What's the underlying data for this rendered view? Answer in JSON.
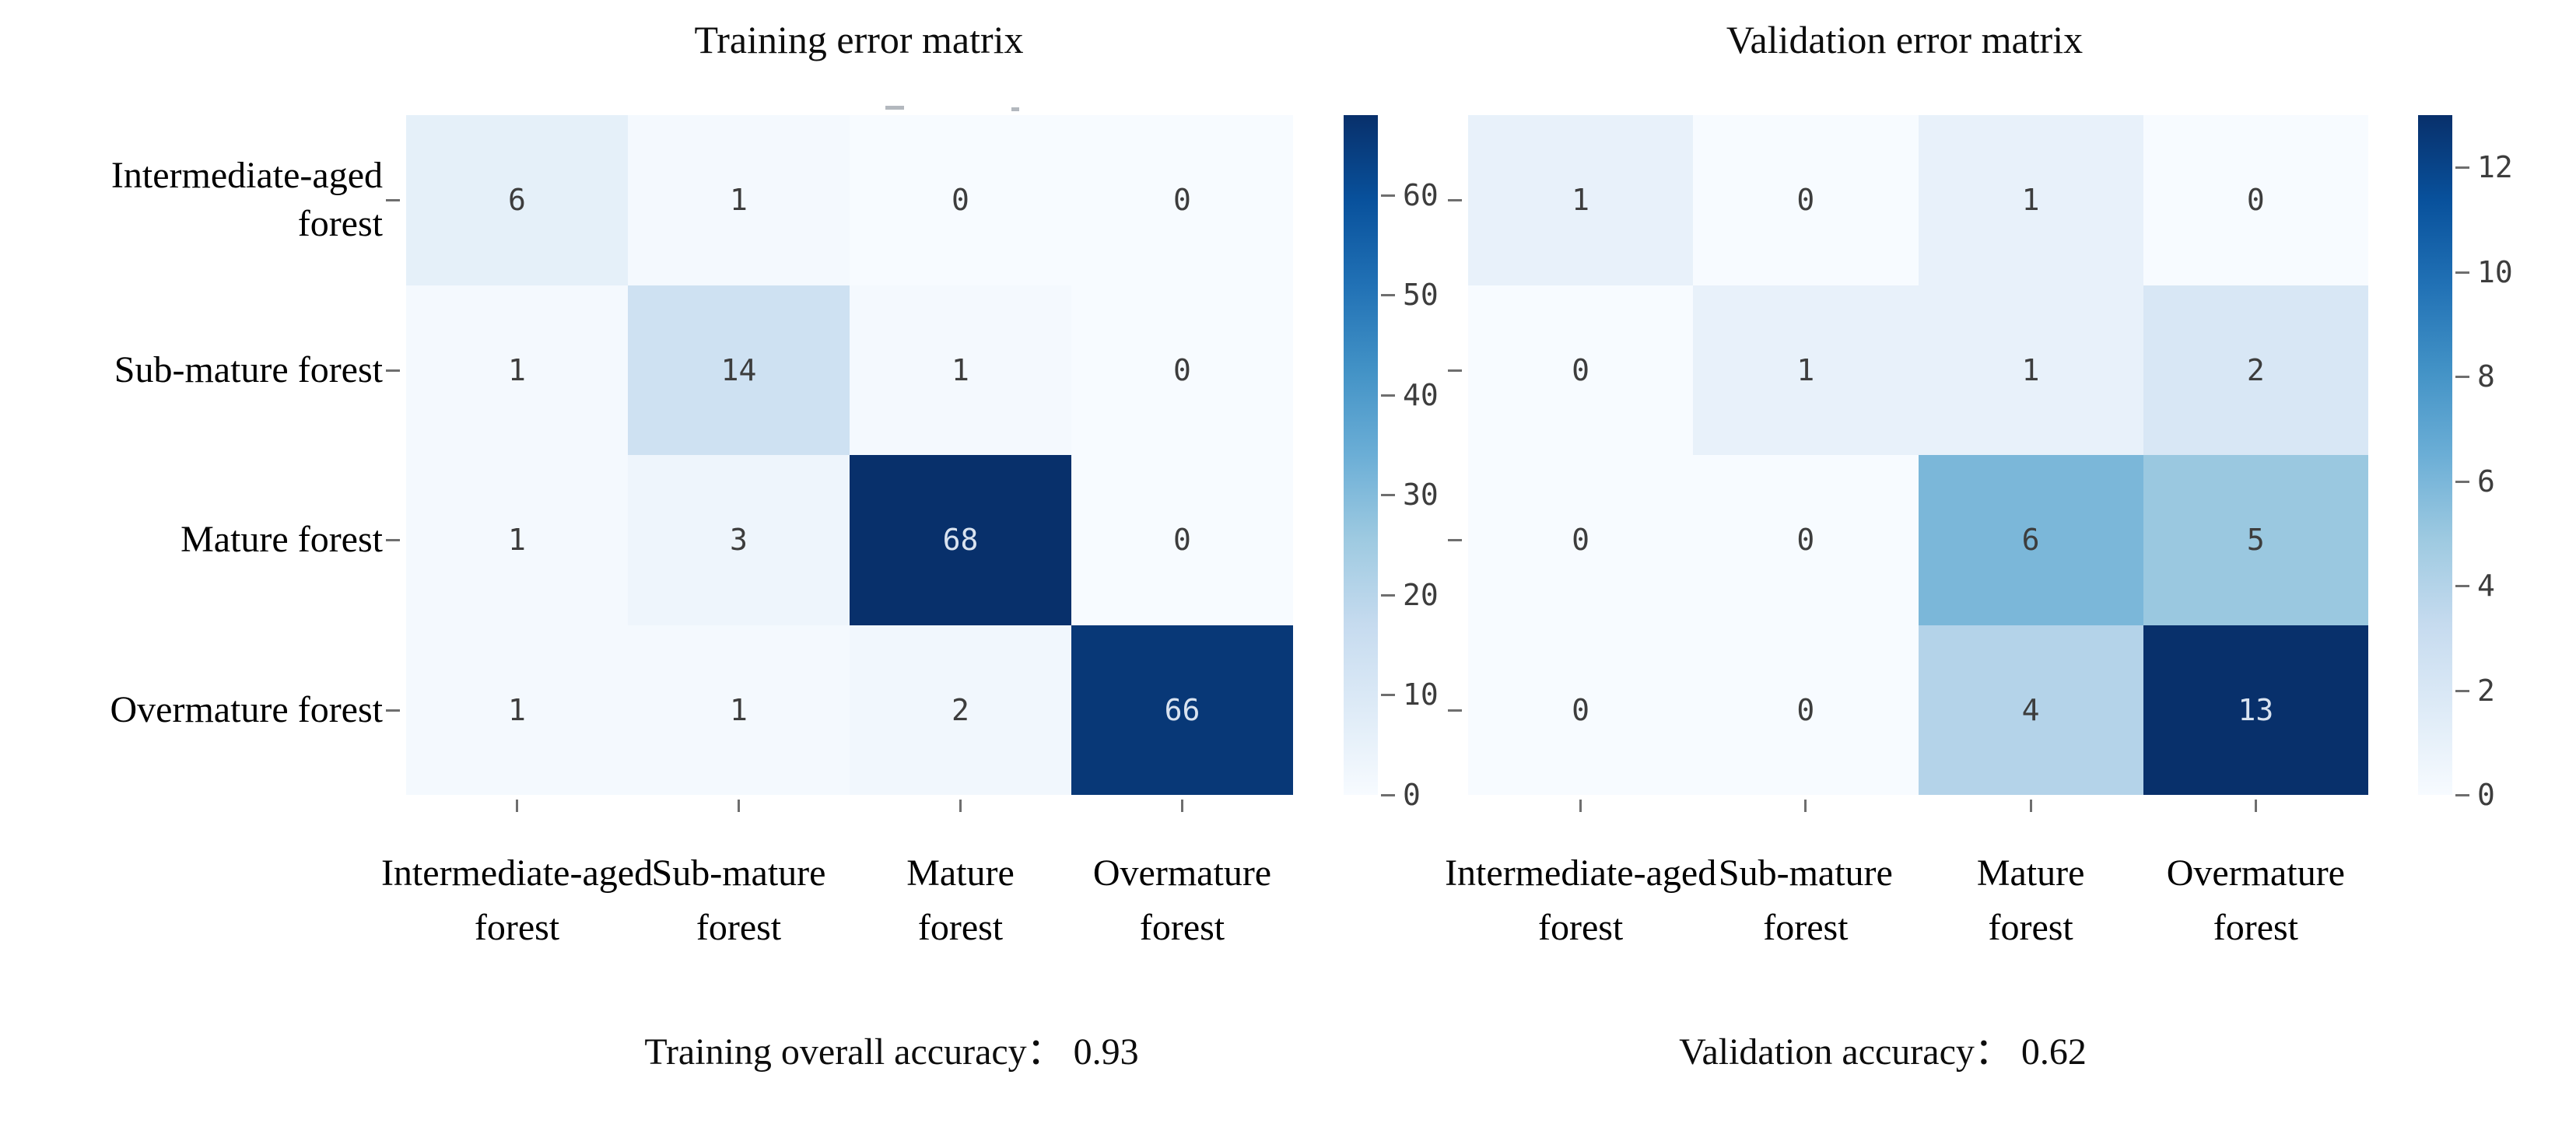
{
  "figure": {
    "background": "#ffffff"
  },
  "colors": {
    "label_text": "#000000",
    "tick_text": "#3d3d3d",
    "tick_mark": "#6e6e6e",
    "cell_text_light_bg": "#3d3d3d",
    "cell_text_dark_bg": "#d9e3f0",
    "colormap_name": "Blues",
    "colormap_stops": [
      [
        0.0,
        [
          247,
          251,
          255
        ]
      ],
      [
        0.125,
        [
          222,
          235,
          247
        ]
      ],
      [
        0.25,
        [
          198,
          219,
          239
        ]
      ],
      [
        0.375,
        [
          158,
          202,
          225
        ]
      ],
      [
        0.5,
        [
          107,
          174,
          214
        ]
      ],
      [
        0.625,
        [
          66,
          146,
          198
        ]
      ],
      [
        0.75,
        [
          33,
          113,
          181
        ]
      ],
      [
        0.875,
        [
          8,
          81,
          156
        ]
      ],
      [
        1.0,
        [
          8,
          48,
          107
        ]
      ]
    ]
  },
  "chart_data": [
    {
      "type": "heatmap",
      "title": "Training error matrix",
      "row_labels": [
        [
          "Intermediate-aged",
          "forest"
        ],
        [
          "Sub-mature forest"
        ],
        [
          "Mature forest"
        ],
        [
          "Overmature forest"
        ]
      ],
      "col_labels": [
        [
          "Intermediate-aged",
          "forest"
        ],
        [
          "Sub-mature",
          "forest"
        ],
        [
          "Mature",
          "forest"
        ],
        [
          "Overmature",
          "forest"
        ]
      ],
      "values": [
        [
          6,
          1,
          0,
          0
        ],
        [
          1,
          14,
          1,
          0
        ],
        [
          1,
          3,
          68,
          0
        ],
        [
          1,
          1,
          2,
          66
        ]
      ],
      "vmin": 0,
      "vmax": 68,
      "colorbar_ticks": [
        0,
        10,
        20,
        30,
        40,
        50,
        60
      ],
      "colorbar_position": "right",
      "legend": "colorbar",
      "grid": false,
      "annotation": "Training overall accuracy：  0.93",
      "accuracy_label": "Training overall accuracy",
      "accuracy_value": "0.93"
    },
    {
      "type": "heatmap",
      "title": "Validation error matrix",
      "row_labels": [],
      "col_labels": [
        [
          "Intermediate-aged",
          "forest"
        ],
        [
          "Sub-mature",
          "forest"
        ],
        [
          "Mature",
          "forest"
        ],
        [
          "Overmature",
          "forest"
        ]
      ],
      "values": [
        [
          1,
          0,
          1,
          0
        ],
        [
          0,
          1,
          1,
          2
        ],
        [
          0,
          0,
          6,
          5
        ],
        [
          0,
          0,
          4,
          13
        ]
      ],
      "vmin": 0,
      "vmax": 13,
      "colorbar_ticks": [
        0,
        2,
        4,
        6,
        8,
        10,
        12
      ],
      "colorbar_position": "right",
      "legend": "colorbar",
      "grid": false,
      "annotation": "Validation accuracy：  0.62",
      "accuracy_label": "Validation accuracy",
      "accuracy_value": "0.62"
    }
  ]
}
